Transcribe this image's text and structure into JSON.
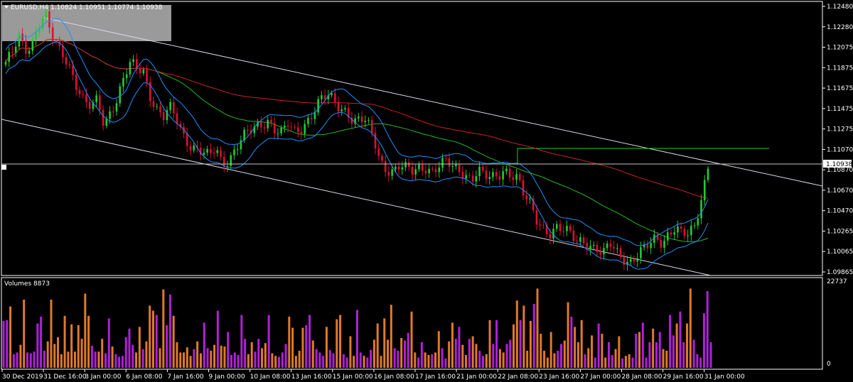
{
  "header": {
    "symbol_line": "EURUSD,H4  1.10824 1.10951 1.10774 1.10938",
    "volume_title": "Volumes 8873"
  },
  "colors": {
    "background": "#000000",
    "bull": "#22cc33",
    "bear": "#dd1133",
    "envelope": "#1e90ff",
    "ma_green": "#22bb22",
    "ma_red": "#cc2222",
    "channel": "#d8d8e8",
    "vol_up": "#b020d8",
    "vol_down": "#e07a28",
    "axis": "#ffffff"
  },
  "chart_data": {
    "type": "candlestick",
    "symbol": "EURUSD",
    "timeframe": "H4",
    "last_price": "1.10938",
    "price_axis_labels": [
      "1.12480",
      "1.12280",
      "1.12075",
      "1.11875",
      "1.11675",
      "1.11475",
      "1.11275",
      "1.11070",
      "1.10870",
      "1.10670",
      "1.10470",
      "1.10265",
      "1.10065",
      "1.09865"
    ],
    "price_range": [
      1.0982,
      1.1258
    ],
    "volume_axis_labels": [
      "22737",
      "0"
    ],
    "volume_max": 22737,
    "time_labels": [
      "30 Dec 2019",
      "31 Dec 16:00",
      "3 Jan 00:00",
      "6 Jan 08:00",
      "7 Jan 16:00",
      "9 Jan 00:00",
      "10 Jan 08:00",
      "13 Jan 16:00",
      "15 Jan 00:00",
      "16 Jan 08:00",
      "17 Jan 16:00",
      "21 Jan 00:00",
      "22 Jan 08:00",
      "23 Jan 16:00",
      "27 Jan 00:00",
      "28 Jan 08:00",
      "29 Jan 16:00",
      "31 Jan 00:00"
    ],
    "price_path": [
      [
        1.1195,
        1.1205,
        1.1225,
        1.1212,
        1.1218,
        1.1235,
        1.1245,
        1.1222,
        1.1212,
        1.1205,
        1.119,
        1.117
      ],
      [
        1.1155,
        1.115,
        1.116,
        1.1135,
        1.115,
        1.116,
        1.118,
        1.1195,
        1.1192,
        1.119,
        1.1165,
        1.115
      ],
      [
        1.114,
        1.115,
        1.114,
        1.1125,
        1.1115,
        1.111,
        1.1105,
        1.11,
        1.111,
        1.1095,
        1.11,
        1.111
      ],
      [
        1.112,
        1.1125,
        1.113,
        1.1135,
        1.114,
        1.113,
        1.1125,
        1.1133,
        1.1125,
        1.113,
        1.114,
        1.115
      ],
      [
        1.116,
        1.1162,
        1.1157,
        1.115,
        1.115,
        1.1138,
        1.114,
        1.1135,
        1.112,
        1.1098,
        1.109,
        1.1088
      ],
      [
        1.1092,
        1.1088,
        1.1085,
        1.109,
        1.1092,
        1.1088,
        1.1092,
        1.1095,
        1.109,
        1.1088,
        1.1085,
        1.108
      ],
      [
        1.1088,
        1.108,
        1.1078,
        1.1082,
        1.109,
        1.1085,
        1.108,
        1.106,
        1.105,
        1.1035,
        1.103,
        1.1025
      ],
      [
        1.103,
        1.1025,
        1.1022,
        1.1015,
        1.1018,
        1.1012,
        1.1008,
        1.1,
        1.1012,
        1.1005,
        1.1,
        1.0995
      ],
      [
        1.1,
        1.1005,
        1.101,
        1.1018,
        1.1015,
        1.1025,
        1.103,
        1.1022,
        1.102,
        1.103,
        1.106,
        1.1094
      ]
    ],
    "volumes": [
      0.55,
      0.56,
      0.72,
      0.16,
      0.18,
      0.27,
      0.8,
      0.18,
      0.17,
      0.19,
      0.52,
      0.6,
      0.2,
      0.31,
      0.8,
      0.28,
      0.36,
      0.16,
      0.61,
      0.19,
      0.51,
      0.19,
      0.5,
      0.34,
      0.87,
      0.61,
      0.26,
      0.19,
      0.19,
      0.34,
      0.17,
      0.58,
      0.25,
      0.16,
      0.13,
      0.14,
      0.36,
      0.46,
      0.27,
      0.18,
      0.48,
      0.22,
      0.31,
      0.73,
      0.67,
      0.62,
      0.23,
      0.92,
      0.5,
      0.86,
      0.61,
      0.3,
      0.18,
      0.18,
      0.24,
      0.14,
      0.22,
      0.31,
      0.17,
      0.53,
      0.23,
      0.2,
      0.27,
      0.67,
      0.26,
      0.25,
      0.42,
      0.15,
      0.18,
      0.15,
      0.62,
      0.34,
      0.16,
      0.3,
      0.19,
      0.34,
      0.23,
      0.29,
      0.62,
      0.17,
      0.14,
      0.13,
      0.18,
      0.28,
      0.6,
      0.47,
      0.14,
      0.2,
      0.47,
      0.5,
      0.62,
      0.32,
      0.22,
      0.18,
      0.14,
      0.48,
      0.21,
      0.17,
      0.57,
      0.62,
      0.16,
      0.12,
      0.37,
      0.14,
      0.68,
      0.18,
      0.14,
      0.12,
      0.21,
      0.33,
      0.52,
      0.14,
      0.58,
      0.33,
      0.74,
      0.23,
      0.2,
      0.35,
      0.32,
      0.41,
      0.66,
      0.18,
      0.12,
      0.3,
      0.18,
      0.15,
      0.16,
      0.18,
      0.43,
      0.23,
      0.11,
      0.31,
      0.53,
      0.34,
      0.48,
      0.27,
      0.15,
      0.34,
      0.37,
      0.28,
      0.2,
      0.14,
      0.16,
      0.56,
      0.28,
      0.56,
      0.22,
      0.18,
      0.28,
      0.33,
      0.51,
      0.79,
      0.56,
      0.73,
      0.2,
      0.55,
      0.75,
      0.93,
      0.4,
      0.2,
      0.12,
      0.42,
      0.17,
      0.2,
      0.28,
      0.32,
      0.77,
      0.6,
      0.48,
      0.3,
      0.56,
      0.16,
      0.23,
      0.38,
      0.12,
      0.52,
      0.4,
      0.12,
      0.3,
      0.15,
      0.22,
      0.37,
      0.11,
      0.14,
      0.16,
      0.12,
      0.4,
      0.42,
      0.53,
      0.12,
      0.3,
      0.46,
      0.3,
      0.42,
      0.22,
      0.2,
      0.62,
      0.38,
      0.52,
      0.66,
      0.3,
      0.52,
      0.93,
      0.33,
      0.16,
      0.12,
      0.64,
      0.9,
      0.3
    ]
  }
}
